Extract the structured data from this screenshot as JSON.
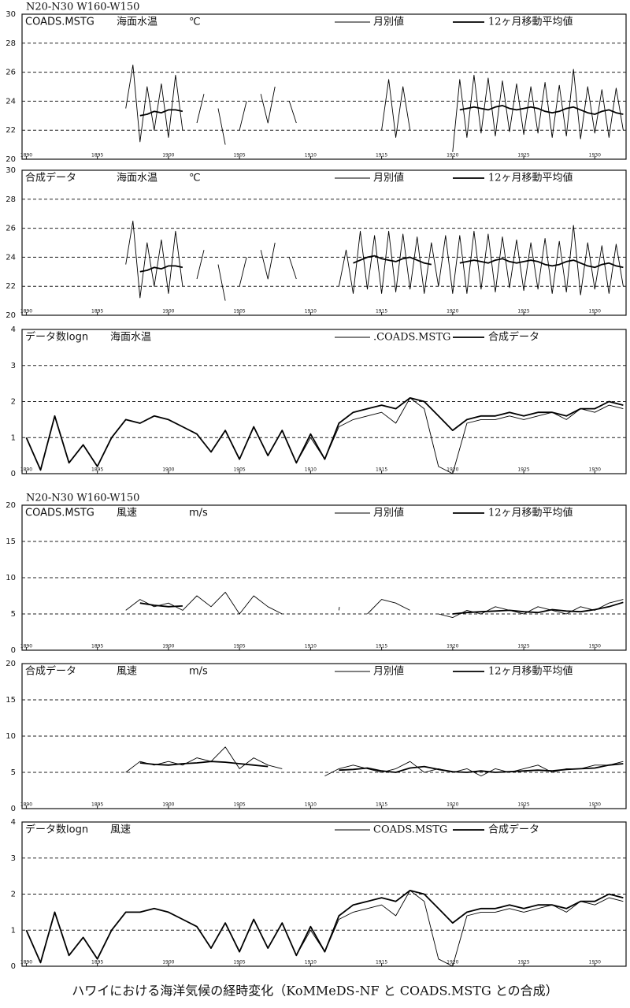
{
  "caption": "ハワイにおける海洋気候の経時変化（KoMMeDS-NF と COADS.MSTG との合成）",
  "chart_data": [
    {
      "type": "line",
      "region": "N20-N30 W160-W150",
      "source": "COADS.MSTG",
      "variable": "海面水温",
      "unit": "℃",
      "xlim": [
        1889.7,
        1932.2
      ],
      "xticks": [
        1890,
        1895,
        1900,
        1905,
        1910,
        1915,
        1920,
        1925,
        1930
      ],
      "ylim": [
        20,
        30
      ],
      "yticks": [
        20,
        22,
        24,
        26,
        28,
        30
      ],
      "grid": true,
      "x": [
        1897,
        1897.5,
        1898,
        1898.5,
        1899,
        1899.5,
        1900,
        1900.5,
        1901,
        1901.5,
        1902,
        1902.5,
        1903,
        1903.5,
        1904,
        1904.5,
        1905,
        1905.5,
        1906,
        1906.5,
        1907,
        1907.5,
        1908,
        1908.5,
        1909,
        1909.5,
        1910,
        1910.5,
        1911,
        1911.5,
        1912,
        1912.5,
        1913,
        1913.5,
        1914,
        1914.5,
        1915,
        1915.5,
        1916,
        1916.5,
        1917,
        1917.5,
        1918,
        1918.5,
        1919,
        1919.5,
        1920,
        1920.5,
        1921,
        1921.5,
        1922,
        1922.5,
        1923,
        1923.5,
        1924,
        1924.5,
        1925,
        1925.5,
        1926,
        1926.5,
        1927,
        1927.5,
        1928,
        1928.5,
        1929,
        1929.5,
        1930,
        1930.5,
        1931,
        1931.5,
        1932
      ],
      "series": [
        {
          "name": "月別値",
          "color": "#000000",
          "values": [
            23.5,
            26.5,
            21.2,
            25.0,
            22.0,
            25.2,
            21.5,
            25.8,
            22.0,
            null,
            22.5,
            24.5,
            null,
            23.5,
            21.0,
            null,
            22.0,
            24.0,
            null,
            24.5,
            22.5,
            25.0,
            null,
            24.0,
            22.5,
            null,
            null,
            null,
            null,
            null,
            null,
            null,
            null,
            null,
            null,
            null,
            22.0,
            25.5,
            21.5,
            25.0,
            22.0,
            null,
            null,
            null,
            null,
            null,
            20.5,
            25.5,
            21.5,
            25.8,
            21.8,
            25.6,
            21.6,
            25.4,
            21.9,
            25.2,
            21.7,
            25.0,
            21.8,
            25.3,
            21.5,
            25.1,
            21.6,
            26.2,
            21.4,
            25.0,
            21.8,
            24.8,
            21.5,
            24.9,
            22.0
          ]
        },
        {
          "name": "12ヶ月移動平均値",
          "color": "#000000",
          "values": [
            null,
            null,
            23.0,
            23.1,
            23.3,
            23.2,
            23.4,
            23.4,
            23.3,
            null,
            null,
            null,
            null,
            null,
            null,
            null,
            null,
            null,
            null,
            null,
            null,
            null,
            null,
            null,
            null,
            null,
            null,
            null,
            null,
            null,
            null,
            null,
            null,
            null,
            null,
            null,
            null,
            null,
            null,
            null,
            null,
            null,
            null,
            null,
            null,
            null,
            null,
            23.4,
            23.5,
            23.6,
            23.5,
            23.4,
            23.6,
            23.7,
            23.5,
            23.4,
            23.5,
            23.6,
            23.5,
            23.3,
            23.2,
            23.3,
            23.5,
            23.6,
            23.4,
            23.2,
            23.1,
            23.3,
            23.4,
            23.2,
            23.1
          ]
        }
      ]
    },
    {
      "type": "line",
      "source": "合成データ",
      "variable": "海面水温",
      "unit": "℃",
      "xlim": [
        1889.7,
        1932.2
      ],
      "xticks": [
        1890,
        1895,
        1900,
        1905,
        1910,
        1915,
        1920,
        1925,
        1930
      ],
      "ylim": [
        20,
        30
      ],
      "yticks": [
        20,
        22,
        24,
        26,
        28,
        30
      ],
      "grid": true,
      "x": [
        1897,
        1897.5,
        1898,
        1898.5,
        1899,
        1899.5,
        1900,
        1900.5,
        1901,
        1901.5,
        1902,
        1902.5,
        1903,
        1903.5,
        1904,
        1904.5,
        1905,
        1905.5,
        1906,
        1906.5,
        1907,
        1907.5,
        1908,
        1908.5,
        1909,
        1909.5,
        1910,
        1910.5,
        1911,
        1911.5,
        1912,
        1912.5,
        1913,
        1913.5,
        1914,
        1914.5,
        1915,
        1915.5,
        1916,
        1916.5,
        1917,
        1917.5,
        1918,
        1918.5,
        1919,
        1919.5,
        1920,
        1920.5,
        1921,
        1921.5,
        1922,
        1922.5,
        1923,
        1923.5,
        1924,
        1924.5,
        1925,
        1925.5,
        1926,
        1926.5,
        1927,
        1927.5,
        1928,
        1928.5,
        1929,
        1929.5,
        1930,
        1930.5,
        1931,
        1931.5,
        1932
      ],
      "series": [
        {
          "name": "月別値",
          "color": "#000000",
          "values": [
            23.5,
            26.5,
            21.2,
            25.0,
            22.0,
            25.2,
            21.5,
            25.8,
            22.0,
            null,
            22.5,
            24.5,
            null,
            23.5,
            21.0,
            null,
            22.0,
            24.0,
            null,
            24.5,
            22.5,
            25.0,
            null,
            24.0,
            22.5,
            null,
            null,
            null,
            null,
            null,
            22.0,
            24.5,
            21.5,
            25.8,
            21.8,
            25.5,
            21.5,
            25.8,
            21.6,
            25.6,
            21.8,
            25.4,
            21.5,
            25.0,
            22.0,
            25.5,
            21.5,
            25.5,
            21.5,
            25.8,
            21.8,
            25.6,
            21.6,
            25.4,
            21.9,
            25.2,
            21.7,
            25.0,
            21.8,
            25.3,
            21.5,
            25.1,
            21.6,
            26.2,
            21.4,
            25.0,
            21.8,
            24.8,
            21.5,
            24.9,
            22.0
          ]
        },
        {
          "name": "12ヶ月移動平均値",
          "color": "#000000",
          "values": [
            null,
            null,
            23.0,
            23.1,
            23.3,
            23.2,
            23.4,
            23.4,
            23.3,
            null,
            null,
            null,
            null,
            null,
            null,
            null,
            null,
            null,
            null,
            null,
            null,
            null,
            null,
            null,
            null,
            null,
            null,
            null,
            null,
            null,
            null,
            null,
            23.6,
            23.8,
            24.0,
            24.1,
            23.9,
            23.8,
            23.7,
            23.9,
            24.0,
            23.8,
            23.6,
            23.5,
            null,
            null,
            null,
            23.6,
            23.7,
            23.8,
            23.7,
            23.6,
            23.8,
            23.9,
            23.7,
            23.6,
            23.7,
            23.8,
            23.7,
            23.5,
            23.4,
            23.5,
            23.7,
            23.8,
            23.6,
            23.4,
            23.3,
            23.5,
            23.6,
            23.4,
            23.3
          ]
        }
      ]
    },
    {
      "type": "line",
      "source": "データ数logn",
      "variable": "海面水温",
      "xlim": [
        1889.7,
        1932.2
      ],
      "xticks": [
        1890,
        1895,
        1900,
        1905,
        1910,
        1915,
        1920,
        1925,
        1930
      ],
      "ylim": [
        0,
        4
      ],
      "yticks": [
        0,
        1,
        2,
        3,
        4
      ],
      "grid": true,
      "x": [
        1890,
        1891,
        1892,
        1893,
        1894,
        1895,
        1896,
        1897,
        1898,
        1899,
        1900,
        1901,
        1902,
        1903,
        1904,
        1905,
        1906,
        1907,
        1908,
        1909,
        1910,
        1911,
        1912,
        1913,
        1914,
        1915,
        1916,
        1917,
        1918,
        1919,
        1920,
        1921,
        1922,
        1923,
        1924,
        1925,
        1926,
        1927,
        1928,
        1929,
        1930,
        1931,
        1932
      ],
      "series": [
        {
          "name": ".COADS.MSTG",
          "color": "#000000",
          "values": [
            1.0,
            0.1,
            1.6,
            0.3,
            0.8,
            0.2,
            1.0,
            1.5,
            1.4,
            1.6,
            1.5,
            1.3,
            1.1,
            0.6,
            1.2,
            0.4,
            1.3,
            0.5,
            1.2,
            0.3,
            1.0,
            0.4,
            1.3,
            1.5,
            1.6,
            1.7,
            1.4,
            2.1,
            1.8,
            0.2,
            0.0,
            1.4,
            1.5,
            1.5,
            1.6,
            1.5,
            1.6,
            1.7,
            1.5,
            1.8,
            1.7,
            1.9,
            1.8
          ]
        },
        {
          "name": "合成データ",
          "color": "#000000",
          "values": [
            1.0,
            0.1,
            1.6,
            0.3,
            0.8,
            0.2,
            1.0,
            1.5,
            1.4,
            1.6,
            1.5,
            1.3,
            1.1,
            0.6,
            1.2,
            0.4,
            1.3,
            0.5,
            1.2,
            0.3,
            1.1,
            0.4,
            1.4,
            1.7,
            1.8,
            1.9,
            1.8,
            2.1,
            2.0,
            1.6,
            1.2,
            1.5,
            1.6,
            1.6,
            1.7,
            1.6,
            1.7,
            1.7,
            1.6,
            1.8,
            1.8,
            2.0,
            1.9
          ]
        }
      ]
    },
    {
      "type": "line",
      "region": "N20-N30 W160-W150",
      "source": "COADS.MSTG",
      "variable": "風速",
      "unit": "m/s",
      "xlim": [
        1889.7,
        1932.2
      ],
      "xticks": [
        1890,
        1895,
        1900,
        1905,
        1910,
        1915,
        1920,
        1925,
        1930
      ],
      "ylim": [
        0,
        20
      ],
      "yticks": [
        0,
        5,
        10,
        15,
        20
      ],
      "grid": true,
      "x": [
        1897,
        1898,
        1899,
        1900,
        1901,
        1902,
        1903,
        1904,
        1905,
        1906,
        1907,
        1908,
        1909,
        1910,
        1911,
        1912,
        1913,
        1914,
        1915,
        1916,
        1917,
        1918,
        1919,
        1920,
        1921,
        1922,
        1923,
        1924,
        1925,
        1926,
        1927,
        1928,
        1929,
        1930,
        1931,
        1932
      ],
      "series": [
        {
          "name": "月別値",
          "color": "#000000",
          "values": [
            5.5,
            7.0,
            6.0,
            6.5,
            5.5,
            7.5,
            6.0,
            8.0,
            5.0,
            7.5,
            6.0,
            5.0,
            null,
            null,
            null,
            5.5,
            null,
            5.0,
            7.0,
            6.5,
            5.5,
            null,
            5.0,
            4.5,
            5.5,
            5.0,
            6.0,
            5.5,
            5.0,
            6.0,
            5.5,
            5.0,
            6.0,
            5.5,
            6.5,
            7.0
          ]
        },
        {
          "name": "12ヶ月移動平均値",
          "color": "#000000",
          "values": [
            null,
            6.5,
            6.2,
            6.0,
            6.1,
            null,
            null,
            null,
            null,
            null,
            null,
            null,
            null,
            null,
            null,
            null,
            null,
            null,
            null,
            null,
            null,
            null,
            null,
            5.0,
            5.2,
            5.3,
            5.4,
            5.5,
            5.3,
            5.2,
            5.6,
            5.4,
            5.3,
            5.6,
            6.0,
            6.6
          ]
        }
      ]
    },
    {
      "type": "line",
      "source": "合成データ",
      "variable": "風速",
      "unit": "m/s",
      "xlim": [
        1889.7,
        1932.2
      ],
      "xticks": [
        1890,
        1895,
        1900,
        1905,
        1910,
        1915,
        1920,
        1925,
        1930
      ],
      "ylim": [
        0,
        20
      ],
      "yticks": [
        0,
        5,
        10,
        15,
        20
      ],
      "grid": true,
      "x": [
        1897,
        1898,
        1899,
        1900,
        1901,
        1902,
        1903,
        1904,
        1905,
        1906,
        1907,
        1908,
        1909,
        1910,
        1911,
        1912,
        1913,
        1914,
        1915,
        1916,
        1917,
        1918,
        1919,
        1920,
        1921,
        1922,
        1923,
        1924,
        1925,
        1926,
        1927,
        1928,
        1929,
        1930,
        1931,
        1932
      ],
      "series": [
        {
          "name": "月別値",
          "color": "#000000",
          "values": [
            5.0,
            6.5,
            6.0,
            6.5,
            6.0,
            7.0,
            6.5,
            8.5,
            5.5,
            7.0,
            6.0,
            5.5,
            null,
            null,
            4.5,
            5.5,
            6.0,
            5.5,
            5.0,
            5.5,
            6.5,
            5.0,
            5.5,
            5.0,
            5.5,
            4.5,
            5.5,
            5.0,
            5.5,
            6.0,
            5.0,
            5.5,
            5.5,
            6.0,
            6.0,
            6.5
          ]
        },
        {
          "name": "12ヶ月移動平均値",
          "color": "#000000",
          "values": [
            null,
            6.3,
            6.1,
            6.0,
            6.2,
            6.3,
            6.5,
            6.4,
            6.2,
            6.0,
            5.8,
            null,
            null,
            null,
            null,
            5.3,
            5.4,
            5.6,
            5.2,
            5.0,
            5.6,
            5.8,
            5.4,
            5.1,
            5.0,
            5.2,
            5.0,
            5.1,
            5.2,
            5.3,
            5.2,
            5.4,
            5.5,
            5.6,
            6.0,
            6.2
          ]
        }
      ]
    },
    {
      "type": "line",
      "source": "データ数logn",
      "variable": "風速",
      "xlim": [
        1889.7,
        1932.2
      ],
      "xticks": [
        1890,
        1895,
        1900,
        1905,
        1910,
        1915,
        1920,
        1925,
        1930
      ],
      "ylim": [
        0,
        4
      ],
      "yticks": [
        0,
        1,
        2,
        3,
        4
      ],
      "grid": true,
      "x": [
        1890,
        1891,
        1892,
        1893,
        1894,
        1895,
        1896,
        1897,
        1898,
        1899,
        1900,
        1901,
        1902,
        1903,
        1904,
        1905,
        1906,
        1907,
        1908,
        1909,
        1910,
        1911,
        1912,
        1913,
        1914,
        1915,
        1916,
        1917,
        1918,
        1919,
        1920,
        1921,
        1922,
        1923,
        1924,
        1925,
        1926,
        1927,
        1928,
        1929,
        1930,
        1931,
        1932
      ],
      "series": [
        {
          "name": "COADS.MSTG",
          "color": "#000000",
          "values": [
            1.0,
            0.1,
            1.5,
            0.3,
            0.8,
            0.2,
            1.0,
            1.5,
            1.5,
            1.6,
            1.5,
            1.3,
            1.1,
            0.5,
            1.2,
            0.4,
            1.3,
            0.5,
            1.2,
            0.3,
            1.0,
            0.4,
            1.3,
            1.5,
            1.6,
            1.7,
            1.4,
            2.1,
            1.8,
            0.2,
            0.0,
            1.4,
            1.5,
            1.5,
            1.6,
            1.5,
            1.6,
            1.7,
            1.5,
            1.8,
            1.7,
            1.9,
            1.8
          ]
        },
        {
          "name": "合成データ",
          "color": "#000000",
          "values": [
            1.0,
            0.1,
            1.5,
            0.3,
            0.8,
            0.2,
            1.0,
            1.5,
            1.5,
            1.6,
            1.5,
            1.3,
            1.1,
            0.5,
            1.2,
            0.4,
            1.3,
            0.5,
            1.2,
            0.3,
            1.1,
            0.4,
            1.4,
            1.7,
            1.8,
            1.9,
            1.8,
            2.1,
            2.0,
            1.6,
            1.2,
            1.5,
            1.6,
            1.6,
            1.7,
            1.6,
            1.7,
            1.7,
            1.6,
            1.8,
            1.8,
            2.0,
            1.9
          ]
        }
      ]
    }
  ]
}
